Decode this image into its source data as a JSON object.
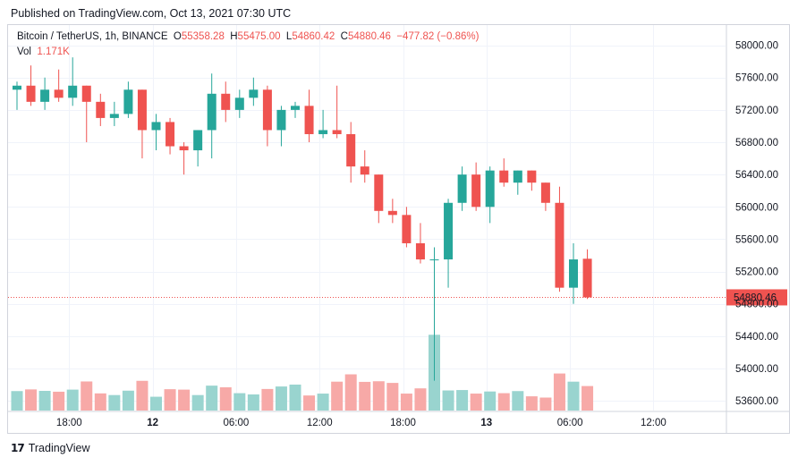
{
  "published_text": "Published on TradingView.com, Oct 13, 2021 07:30 UTC",
  "footer_brand": "TradingView",
  "legend": {
    "symbol": "Bitcoin / TetherUS, 1h, BINANCE",
    "o_label": "O",
    "o_value": "55358.28",
    "h_label": "H",
    "h_value": "55475.00",
    "l_label": "L",
    "l_value": "54860.42",
    "c_label": "C",
    "c_value": "54880.46",
    "change": "−477.82 (−0.86%)",
    "vol_label": "Vol",
    "vol_value": "1.171K"
  },
  "colors": {
    "up": "#26a69a",
    "down": "#ef5350",
    "vol_up": "#99d4cf",
    "vol_down": "#f7a9a7",
    "grid": "#f0f3fa",
    "last_price_line": "#ef5350"
  },
  "chart_data": {
    "type": "candlestick",
    "symbol": "Bitcoin / TetherUS",
    "interval": "1h",
    "exchange": "BINANCE",
    "ylim": [
      53480,
      58250
    ],
    "y_ticks": [
      "58000.00",
      "57600.00",
      "57200.00",
      "56800.00",
      "56400.00",
      "56000.00",
      "55600.00",
      "55200.00",
      "54800.00",
      "54400.00",
      "54000.00",
      "53600.00"
    ],
    "y_tick_values": [
      58000,
      57600,
      57200,
      56800,
      56400,
      56000,
      55600,
      55200,
      54800,
      54400,
      54000,
      53600
    ],
    "x_ticks": [
      "18:00",
      "12",
      "06:00",
      "12:00",
      "18:00",
      "13",
      "06:00",
      "12:00"
    ],
    "x_tick_index": [
      3.75,
      9.75,
      15.75,
      21.75,
      27.75,
      33.75,
      39.75,
      45.75
    ],
    "x_bold_ticks": [
      "12",
      "13"
    ],
    "last_price": 54880.46,
    "last_price_label": "54880.46",
    "grid": true,
    "candles": [
      {
        "o": 57450,
        "h": 57550,
        "l": 57200,
        "c": 57500
      },
      {
        "o": 57500,
        "h": 57750,
        "l": 57250,
        "c": 57300
      },
      {
        "o": 57300,
        "h": 57600,
        "l": 57200,
        "c": 57450
      },
      {
        "o": 57450,
        "h": 57700,
        "l": 57300,
        "c": 57350
      },
      {
        "o": 57350,
        "h": 57850,
        "l": 57250,
        "c": 57500
      },
      {
        "o": 57500,
        "h": 57500,
        "l": 56800,
        "c": 57300
      },
      {
        "o": 57300,
        "h": 57400,
        "l": 57000,
        "c": 57100
      },
      {
        "o": 57100,
        "h": 57300,
        "l": 57000,
        "c": 57150
      },
      {
        "o": 57150,
        "h": 57550,
        "l": 57100,
        "c": 57450
      },
      {
        "o": 57450,
        "h": 57450,
        "l": 56600,
        "c": 56950
      },
      {
        "o": 56950,
        "h": 57150,
        "l": 56700,
        "c": 57050
      },
      {
        "o": 57050,
        "h": 57100,
        "l": 56650,
        "c": 56750
      },
      {
        "o": 56750,
        "h": 56800,
        "l": 56400,
        "c": 56700
      },
      {
        "o": 56700,
        "h": 56950,
        "l": 56500,
        "c": 56950
      },
      {
        "o": 56950,
        "h": 57650,
        "l": 56600,
        "c": 57400
      },
      {
        "o": 57400,
        "h": 57550,
        "l": 57050,
        "c": 57200
      },
      {
        "o": 57200,
        "h": 57450,
        "l": 57100,
        "c": 57350
      },
      {
        "o": 57350,
        "h": 57600,
        "l": 57250,
        "c": 57450
      },
      {
        "o": 57450,
        "h": 57500,
        "l": 56750,
        "c": 56950
      },
      {
        "o": 56950,
        "h": 57250,
        "l": 56750,
        "c": 57200
      },
      {
        "o": 57200,
        "h": 57300,
        "l": 57100,
        "c": 57250
      },
      {
        "o": 57250,
        "h": 57450,
        "l": 56800,
        "c": 56900
      },
      {
        "o": 56900,
        "h": 57200,
        "l": 56850,
        "c": 56950
      },
      {
        "o": 56950,
        "h": 57500,
        "l": 56850,
        "c": 56900
      },
      {
        "o": 56900,
        "h": 57050,
        "l": 56300,
        "c": 56500
      },
      {
        "o": 56500,
        "h": 56700,
        "l": 56300,
        "c": 56400
      },
      {
        "o": 56400,
        "h": 56400,
        "l": 55800,
        "c": 55950
      },
      {
        "o": 55950,
        "h": 56100,
        "l": 55800,
        "c": 55900
      },
      {
        "o": 55900,
        "h": 56000,
        "l": 55500,
        "c": 55550
      },
      {
        "o": 55550,
        "h": 55800,
        "l": 55300,
        "c": 55350
      },
      {
        "o": 55350,
        "h": 55500,
        "l": 53850,
        "c": 55350
      },
      {
        "o": 55350,
        "h": 56100,
        "l": 55000,
        "c": 56050
      },
      {
        "o": 56050,
        "h": 56500,
        "l": 55950,
        "c": 56400
      },
      {
        "o": 56400,
        "h": 56550,
        "l": 55950,
        "c": 56000
      },
      {
        "o": 56000,
        "h": 56500,
        "l": 55800,
        "c": 56450
      },
      {
        "o": 56450,
        "h": 56600,
        "l": 56250,
        "c": 56300
      },
      {
        "o": 56300,
        "h": 56450,
        "l": 56150,
        "c": 56450
      },
      {
        "o": 56450,
        "h": 56450,
        "l": 56200,
        "c": 56300
      },
      {
        "o": 56300,
        "h": 56300,
        "l": 55950,
        "c": 56050
      },
      {
        "o": 56050,
        "h": 56250,
        "l": 54950,
        "c": 55000
      },
      {
        "o": 55000,
        "h": 55550,
        "l": 54800,
        "c": 55350
      },
      {
        "o": 55358.28,
        "h": 55475.0,
        "l": 54860.42,
        "c": 54880.46
      }
    ],
    "volumes": [
      0.93,
      1.01,
      0.94,
      0.9,
      1.0,
      1.39,
      0.82,
      0.74,
      0.95,
      1.42,
      0.66,
      1.02,
      1.0,
      0.74,
      1.19,
      1.11,
      0.83,
      0.77,
      1.03,
      1.15,
      1.24,
      0.72,
      0.81,
      1.38,
      1.73,
      1.37,
      1.4,
      1.32,
      0.81,
      1.06,
      3.62,
      0.96,
      0.98,
      0.81,
      0.91,
      0.83,
      0.93,
      0.68,
      0.62,
      1.77,
      1.38,
      1.171
    ]
  }
}
